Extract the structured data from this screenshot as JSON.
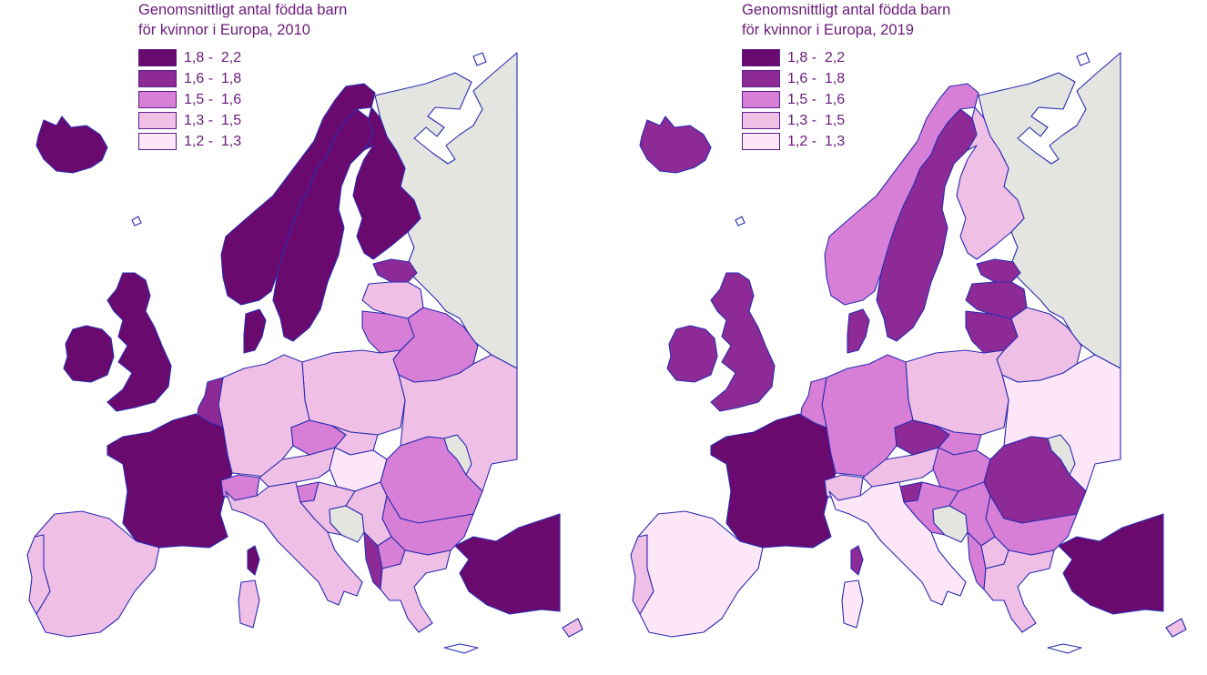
{
  "colors": {
    "class_1": "#6b0a6e",
    "class_2": "#8e2a96",
    "class_3": "#d77fd7",
    "class_4": "#efbfe6",
    "class_5": "#fce6f8",
    "no_data": "#e4e5e1",
    "border": "#2b2bb0",
    "text": "#6a1a7a"
  },
  "legend": [
    {
      "label": "1,8 -  2,2",
      "class": "class_1"
    },
    {
      "label": "1,6 -  1,8",
      "class": "class_2"
    },
    {
      "label": "1,5 -  1,6",
      "class": "class_3"
    },
    {
      "label": "1,3 -  1,5",
      "class": "class_4"
    },
    {
      "label": "1,2 -  1,3",
      "class": "class_5"
    }
  ],
  "maps": [
    {
      "title_line1": "Genomsnittligt antal födda barn",
      "title_line2": "för kvinnor i Europa, 2010",
      "regions": {
        "iceland": "class_1",
        "ireland": "class_1",
        "uk": "class_1",
        "norway": "class_1",
        "sweden": "class_1",
        "finland": "class_1",
        "denmark": "class_1",
        "france": "class_1",
        "turkey": "class_1",
        "benelux": "class_2",
        "estonia": "class_2",
        "albania": "class_2",
        "latvia": "class_4",
        "lithuania": "class_3",
        "belarus": "class_3",
        "poland": "class_4",
        "germany": "class_4",
        "czechia": "class_3",
        "austria": "class_4",
        "switzerland": "class_3",
        "slovakia": "class_4",
        "hungary": "class_5",
        "slovenia": "class_3",
        "croatia": "class_4",
        "serbia": "class_4",
        "romania": "class_3",
        "bulgaria": "class_3",
        "ukraine": "class_4",
        "italy": "class_4",
        "spain": "class_4",
        "portugal": "class_4",
        "greece": "class_4",
        "n_macedonia": "class_3",
        "cyprus": "class_4",
        "corsica": "class_1",
        "sardinia": "class_4",
        "russia": "no_data",
        "bosnia": "no_data",
        "moldova": "no_data"
      }
    },
    {
      "title_line1": "Genomsnittligt antal födda barn",
      "title_line2": "för kvinnor i Europa, 2019",
      "regions": {
        "iceland": "class_2",
        "ireland": "class_2",
        "uk": "class_2",
        "norway": "class_3",
        "sweden": "class_2",
        "finland": "class_4",
        "denmark": "class_2",
        "france": "class_1",
        "turkey": "class_1",
        "benelux": "class_3",
        "estonia": "class_2",
        "albania": "class_3",
        "latvia": "class_2",
        "lithuania": "class_2",
        "belarus": "class_4",
        "poland": "class_4",
        "germany": "class_3",
        "czechia": "class_2",
        "austria": "class_4",
        "switzerland": "class_4",
        "slovakia": "class_3",
        "hungary": "class_3",
        "slovenia": "class_2",
        "croatia": "class_3",
        "serbia": "class_3",
        "romania": "class_2",
        "bulgaria": "class_3",
        "ukraine": "class_5",
        "italy": "class_5",
        "spain": "class_5",
        "portugal": "class_4",
        "greece": "class_4",
        "n_macedonia": "class_4",
        "cyprus": "class_4",
        "corsica": "class_2",
        "sardinia": "class_5",
        "russia": "no_data",
        "bosnia": "no_data",
        "moldova": "no_data"
      }
    }
  ]
}
